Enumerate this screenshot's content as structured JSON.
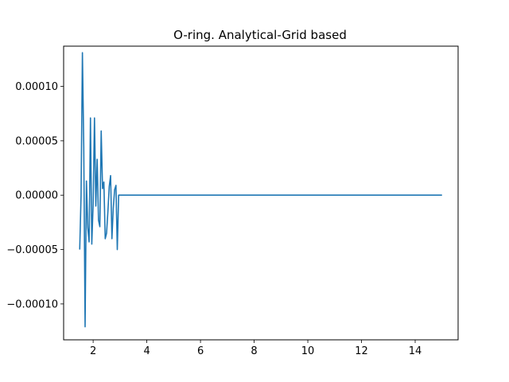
{
  "chart_data": {
    "type": "line",
    "title": "O-ring. Analytical-Grid based",
    "xlabel": "",
    "ylabel": "",
    "xlim": [
      0.9,
      15.6
    ],
    "ylim": [
      -0.000133,
      0.000137
    ],
    "x_ticks": [
      2,
      4,
      6,
      8,
      10,
      12,
      14
    ],
    "x_tick_labels": [
      "2",
      "4",
      "6",
      "8",
      "10",
      "12",
      "14"
    ],
    "y_ticks": [
      0.0001,
      5e-05,
      0.0,
      -5e-05,
      -0.0001
    ],
    "y_tick_labels": [
      "0.00010",
      "0.00005",
      "0.00000",
      "−0.00005",
      "−0.00010"
    ],
    "grid": false,
    "legend": "none",
    "series": [
      {
        "color": "#1f77b4",
        "x": [
          1.5,
          1.55,
          1.6,
          1.65,
          1.7,
          1.75,
          1.8,
          1.85,
          1.9,
          1.95,
          2.0,
          2.05,
          2.1,
          2.15,
          2.2,
          2.25,
          2.3,
          2.35,
          2.4,
          2.45,
          2.5,
          2.55,
          2.6,
          2.65,
          2.7,
          2.75,
          2.8,
          2.85,
          2.9,
          2.95,
          3.0,
          3.05,
          3.1,
          3.15,
          3.2,
          3.25,
          3.3,
          15.0
        ],
        "y": [
          -5e-05,
          0.0,
          0.000131,
          4.5e-05,
          -0.000121,
          1.3e-05,
          -3e-05,
          -4.3e-05,
          7.1e-05,
          -4.5e-05,
          -8e-06,
          7.1e-05,
          -1e-05,
          3.3e-05,
          -2.3e-05,
          -2.9e-05,
          5.9e-05,
          6e-06,
          1.2e-05,
          -4e-05,
          -3.5e-05,
          -1.5e-05,
          8e-06,
          1.8e-05,
          -4e-05,
          -1.2e-05,
          5e-06,
          9e-06,
          -5e-05,
          0.0,
          0.0,
          0.0,
          0.0,
          0.0,
          0.0,
          0.0,
          0.0,
          0.0
        ]
      }
    ]
  }
}
